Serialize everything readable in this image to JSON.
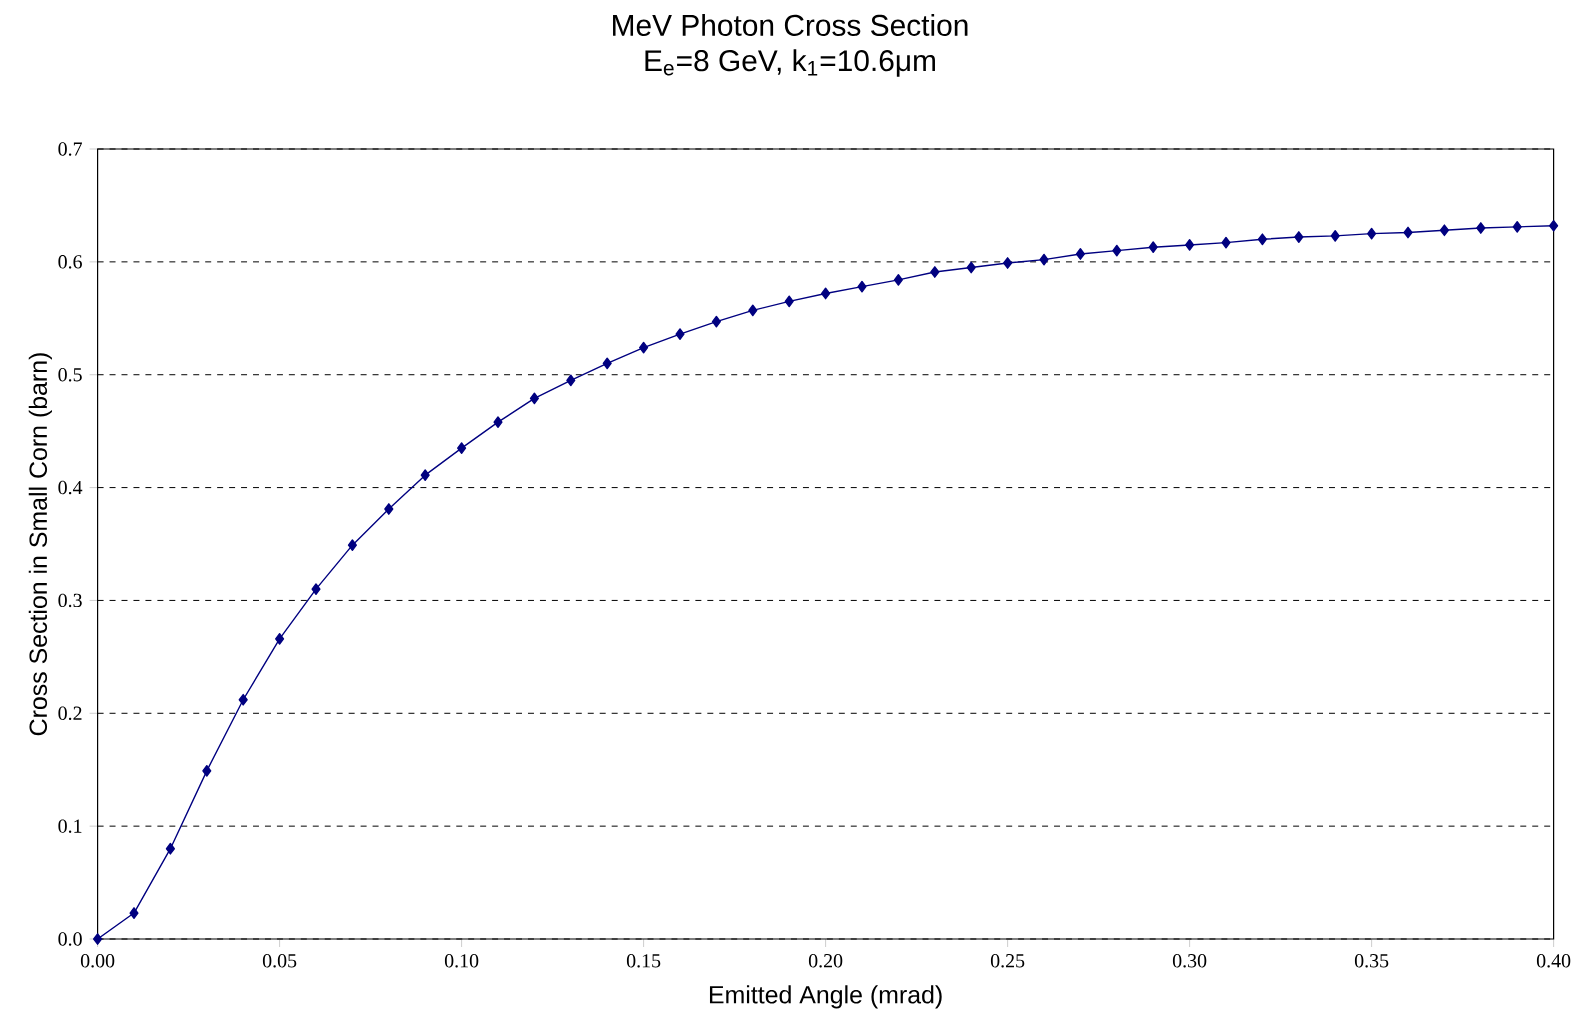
{
  "chart_data": {
    "type": "line",
    "title": "MeV Photon Cross Section",
    "subtitle": "E$_{e}$=8 GeV, k$_{1}$=10.6μm",
    "xlabel": "Emitted Angle (mrad)",
    "ylabel": "Cross Section in Small Corn (barn)",
    "x": [
      0.0,
      0.01,
      0.02,
      0.03,
      0.04,
      0.05,
      0.06,
      0.07,
      0.08,
      0.09,
      0.1,
      0.11,
      0.12,
      0.13,
      0.14,
      0.15,
      0.16,
      0.17,
      0.18,
      0.19,
      0.2,
      0.21,
      0.22,
      0.23,
      0.24,
      0.25,
      0.26,
      0.27,
      0.28,
      0.29,
      0.3,
      0.31,
      0.32,
      0.33,
      0.34,
      0.35,
      0.36,
      0.37,
      0.38,
      0.39,
      0.4
    ],
    "series": [
      {
        "color": "#000080",
        "values": [
          0,
          0.023,
          0.08,
          0.149,
          0.212,
          0.266,
          0.31,
          0.349,
          0.381,
          0.411,
          0.435,
          0.458,
          0.479,
          0.495,
          0.51,
          0.524,
          0.536,
          0.547,
          0.557,
          0.565,
          0.572,
          0.578,
          0.584,
          0.591,
          0.595,
          0.599,
          0.602,
          0.607,
          0.61,
          0.613,
          0.615,
          0.617,
          0.62,
          0.622,
          0.623,
          0.625,
          0.626,
          0.628,
          0.63,
          0.631,
          0.632
        ]
      }
    ],
    "xlim": [
      0,
      0.4
    ],
    "ylim": [
      0,
      0.7
    ],
    "xticks": [
      {
        "value": 0,
        "label": "0.00"
      },
      {
        "value": 0.05,
        "label": "0.05"
      },
      {
        "value": 0.1,
        "label": "0.10"
      },
      {
        "value": 0.15,
        "label": "0.15"
      },
      {
        "value": 0.2,
        "label": "0.20"
      },
      {
        "value": 0.25,
        "label": "0.25"
      },
      {
        "value": 0.3,
        "label": "0.30"
      },
      {
        "value": 0.35,
        "label": "0.35"
      },
      {
        "value": 0.4,
        "label": "0.40"
      }
    ],
    "yticks": [
      {
        "value": 0,
        "label": "0.0"
      },
      0.1,
      0.2,
      0.3,
      0.4,
      0.5,
      0.6,
      0.7
    ],
    "grid": "y",
    "marker": "diamond",
    "line_style": "solid"
  }
}
